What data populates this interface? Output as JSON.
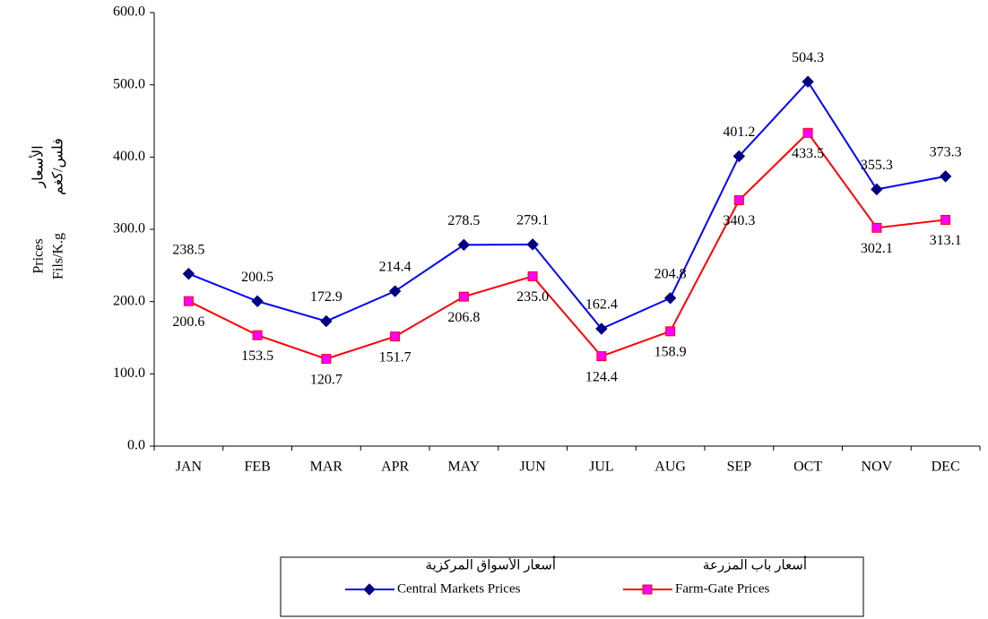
{
  "chart_data": {
    "type": "line",
    "ylabel": [
      "Prices",
      "Fils/K.g"
    ],
    "ylabel_ar": [
      "الأسعار",
      "فلس/كغم"
    ],
    "categories": [
      "JAN",
      "FEB",
      "MAR",
      "APR",
      "MAY",
      "JUN",
      "JUL",
      "AUG",
      "SEP",
      "OCT",
      "NOV",
      "DEC"
    ],
    "series": [
      {
        "name": "Central Markets Prices",
        "name_ar": "أسعار الأسواق المركزية",
        "color": "#0000ff",
        "marker": "diamond",
        "marker_color": "#000080",
        "values": [
          238.5,
          200.5,
          172.9,
          214.4,
          278.5,
          279.1,
          162.4,
          204.8,
          401.2,
          504.3,
          355.3,
          373.3
        ],
        "value_labels": [
          "238.5",
          "200.5",
          "172.9",
          "214.4",
          "278.5",
          "279.1",
          "162.4",
          "204.8",
          "401.2",
          "504.3",
          "355.3",
          "373.3"
        ]
      },
      {
        "name": "Farm-Gate Prices",
        "name_ar": "أسعار باب المزرعة",
        "color": "#ff0000",
        "marker": "square",
        "marker_color": "#ff00ff",
        "values": [
          200.6,
          153.5,
          120.7,
          151.7,
          206.8,
          235.0,
          124.4,
          158.9,
          340.3,
          433.5,
          302.1,
          313.1
        ],
        "value_labels": [
          "200.6",
          "153.5",
          "120.7",
          "151.7",
          "206.8",
          "235.0",
          "124.4",
          "158.9",
          "340.3",
          "433.5",
          "302.1",
          "313.1"
        ]
      }
    ],
    "ylim": [
      0,
      600
    ],
    "yticks": [
      {
        "value": 0,
        "label": "0.0"
      },
      {
        "value": 100,
        "label": "100.0"
      },
      {
        "value": 200,
        "label": "200.0"
      },
      {
        "value": 300,
        "label": "300.0"
      },
      {
        "value": 400,
        "label": "400.0"
      },
      {
        "value": 500,
        "label": "500.0"
      },
      {
        "value": 600,
        "label": "600.0"
      }
    ],
    "grid": false,
    "legend": "bottom"
  }
}
